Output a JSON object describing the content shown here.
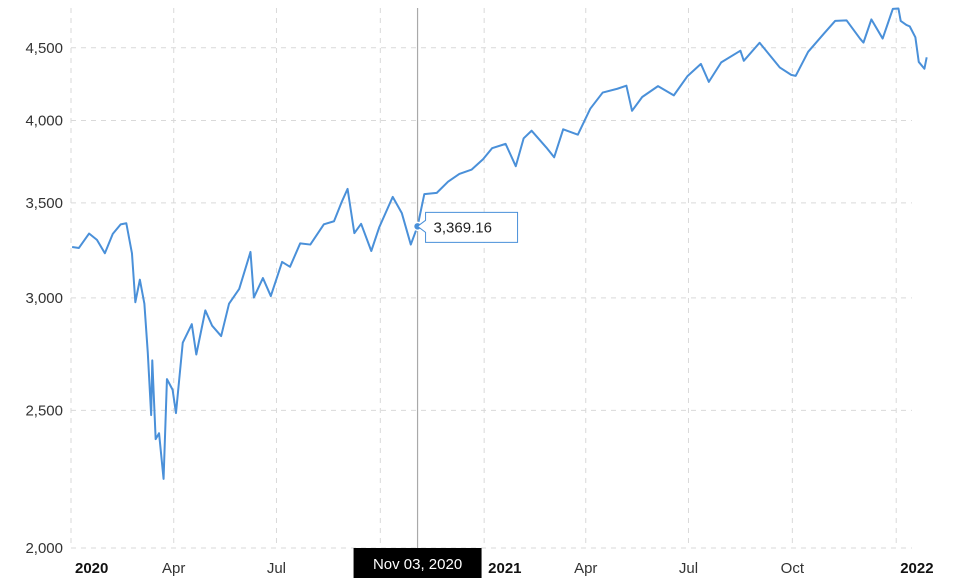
{
  "chart_data": {
    "type": "line",
    "title": "",
    "xlabel": "",
    "ylabel": "",
    "y_scale": "log",
    "ylim": [
      2000,
      4800
    ],
    "xlim": [
      "2020-01-01",
      "2022-01-15"
    ],
    "y_ticks": [
      {
        "value": 2000,
        "label": "2,000"
      },
      {
        "value": 2500,
        "label": "2,500"
      },
      {
        "value": 3000,
        "label": "3,000"
      },
      {
        "value": 3500,
        "label": "3,500"
      },
      {
        "value": 4000,
        "label": "4,000"
      },
      {
        "value": 4500,
        "label": "4,500"
      }
    ],
    "x_ticks": [
      {
        "date": "2020-01-01",
        "label": "2020",
        "major": true
      },
      {
        "date": "2020-04-01",
        "label": "Apr",
        "major": false
      },
      {
        "date": "2020-07-01",
        "label": "Jul",
        "major": false
      },
      {
        "date": "2020-10-01",
        "label": "Oct",
        "major": false
      },
      {
        "date": "2021-01-01",
        "label": "2021",
        "major": true
      },
      {
        "date": "2021-04-01",
        "label": "Apr",
        "major": false
      },
      {
        "date": "2021-07-01",
        "label": "Jul",
        "major": false
      },
      {
        "date": "2021-10-01",
        "label": "Oct",
        "major": false
      },
      {
        "date": "2022-01-01",
        "label": "2022",
        "major": true
      }
    ],
    "grid": true,
    "line_color": "#4a90d9",
    "series": [
      {
        "points": [
          [
            "2020-01-02",
            3258
          ],
          [
            "2020-01-08",
            3253
          ],
          [
            "2020-01-17",
            3330
          ],
          [
            "2020-01-24",
            3296
          ],
          [
            "2020-01-31",
            3225
          ],
          [
            "2020-02-07",
            3328
          ],
          [
            "2020-02-14",
            3380
          ],
          [
            "2020-02-19",
            3386
          ],
          [
            "2020-02-24",
            3225
          ],
          [
            "2020-02-27",
            2979
          ],
          [
            "2020-03-02",
            3090
          ],
          [
            "2020-03-06",
            2972
          ],
          [
            "2020-03-09",
            2747
          ],
          [
            "2020-03-12",
            2481
          ],
          [
            "2020-03-13",
            2711
          ],
          [
            "2020-03-16",
            2386
          ],
          [
            "2020-03-19",
            2409
          ],
          [
            "2020-03-23",
            2237
          ],
          [
            "2020-03-26",
            2630
          ],
          [
            "2020-03-31",
            2585
          ],
          [
            "2020-04-03",
            2489
          ],
          [
            "2020-04-09",
            2790
          ],
          [
            "2020-04-17",
            2875
          ],
          [
            "2020-04-21",
            2737
          ],
          [
            "2020-04-29",
            2940
          ],
          [
            "2020-05-05",
            2868
          ],
          [
            "2020-05-13",
            2820
          ],
          [
            "2020-05-20",
            2972
          ],
          [
            "2020-05-29",
            3044
          ],
          [
            "2020-06-08",
            3232
          ],
          [
            "2020-06-11",
            3002
          ],
          [
            "2020-06-19",
            3098
          ],
          [
            "2020-06-26",
            3009
          ],
          [
            "2020-07-06",
            3180
          ],
          [
            "2020-07-13",
            3155
          ],
          [
            "2020-07-22",
            3277
          ],
          [
            "2020-07-31",
            3271
          ],
          [
            "2020-08-12",
            3380
          ],
          [
            "2020-08-21",
            3397
          ],
          [
            "2020-08-28",
            3508
          ],
          [
            "2020-09-02",
            3580
          ],
          [
            "2020-09-08",
            3332
          ],
          [
            "2020-09-14",
            3383
          ],
          [
            "2020-09-23",
            3237
          ],
          [
            "2020-09-30",
            3363
          ],
          [
            "2020-10-12",
            3534
          ],
          [
            "2020-10-20",
            3443
          ],
          [
            "2020-10-28",
            3271
          ],
          [
            "2020-11-03",
            3369.16
          ],
          [
            "2020-11-09",
            3550
          ],
          [
            "2020-11-20",
            3557
          ],
          [
            "2020-11-30",
            3622
          ],
          [
            "2020-12-10",
            3668
          ],
          [
            "2020-12-21",
            3694
          ],
          [
            "2020-12-31",
            3756
          ],
          [
            "2021-01-08",
            3824
          ],
          [
            "2021-01-20",
            3851
          ],
          [
            "2021-01-29",
            3714
          ],
          [
            "2021-02-05",
            3886
          ],
          [
            "2021-02-12",
            3934
          ],
          [
            "2021-02-25",
            3829
          ],
          [
            "2021-03-04",
            3768
          ],
          [
            "2021-03-12",
            3943
          ],
          [
            "2021-03-25",
            3909
          ],
          [
            "2021-04-05",
            4077
          ],
          [
            "2021-04-16",
            4185
          ],
          [
            "2021-04-29",
            4211
          ],
          [
            "2021-05-07",
            4232
          ],
          [
            "2021-05-12",
            4063
          ],
          [
            "2021-05-21",
            4155
          ],
          [
            "2021-06-04",
            4229
          ],
          [
            "2021-06-18",
            4166
          ],
          [
            "2021-06-30",
            4297
          ],
          [
            "2021-07-12",
            4384
          ],
          [
            "2021-07-19",
            4258
          ],
          [
            "2021-07-30",
            4395
          ],
          [
            "2021-08-16",
            4479
          ],
          [
            "2021-08-19",
            4406
          ],
          [
            "2021-09-02",
            4537
          ],
          [
            "2021-09-20",
            4358
          ],
          [
            "2021-09-30",
            4307
          ],
          [
            "2021-10-04",
            4300
          ],
          [
            "2021-10-15",
            4471
          ],
          [
            "2021-10-29",
            4605
          ],
          [
            "2021-11-08",
            4701
          ],
          [
            "2021-11-18",
            4705
          ],
          [
            "2021-11-30",
            4567
          ],
          [
            "2021-12-03",
            4538
          ],
          [
            "2021-12-10",
            4712
          ],
          [
            "2021-12-20",
            4568
          ],
          [
            "2021-12-29",
            4793
          ],
          [
            "2022-01-03",
            4796
          ],
          [
            "2022-01-05",
            4700
          ],
          [
            "2022-01-10",
            4670
          ],
          [
            "2022-01-13",
            4659
          ],
          [
            "2022-01-18",
            4577
          ],
          [
            "2022-01-21",
            4398
          ],
          [
            "2022-01-26",
            4350
          ],
          [
            "2022-01-28",
            4431
          ]
        ]
      }
    ],
    "tooltip": {
      "date": "2020-11-03",
      "date_label": "Nov 03, 2020",
      "value": 3369.16,
      "value_label": "3,369.16"
    }
  }
}
